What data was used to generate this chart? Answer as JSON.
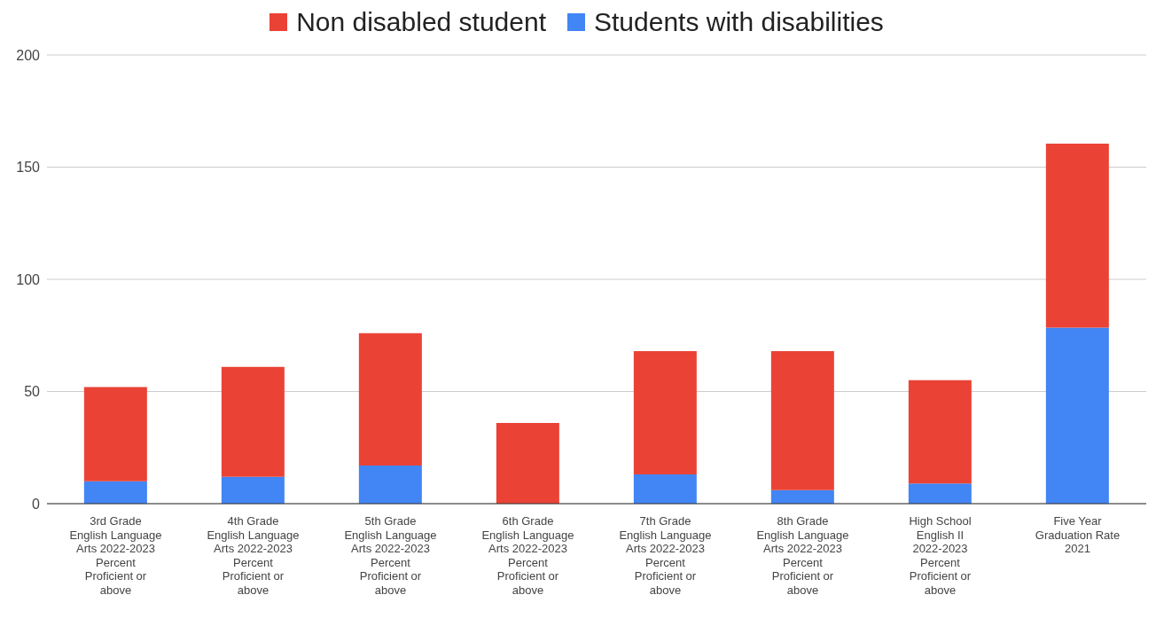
{
  "chart_data": {
    "type": "bar",
    "stacked": true,
    "categories": [
      "3rd Grade English Language Arts 2022-2023 Percent Proficient or above",
      "4th Grade English Language Arts 2022-2023 Percent Proficient or above",
      "5th Grade English Language Arts 2022-2023 Percent Proficient or above",
      "6th Grade English Language Arts 2022-2023 Percent Proficient or above",
      "7th Grade English Language Arts 2022-2023 Percent Proficient or above",
      "8th Grade English Language Arts 2022-2023 Percent Proficient or above",
      "High School English II 2022-2023 Percent Proficient or above",
      "Five Year Graduation Rate 2021"
    ],
    "series": [
      {
        "name": "Students with disabilities",
        "color": "#4285f4",
        "values": [
          10,
          12,
          17,
          0,
          13,
          6,
          9,
          78.5
        ]
      },
      {
        "name": "Non disabled student",
        "color": "#ea4335",
        "values": [
          42,
          49,
          59,
          36,
          55,
          62,
          46,
          82
        ]
      }
    ],
    "ylim": [
      0,
      200
    ],
    "yticks": [
      0,
      50,
      100,
      150,
      200
    ],
    "grid": "y",
    "legend": "top"
  }
}
